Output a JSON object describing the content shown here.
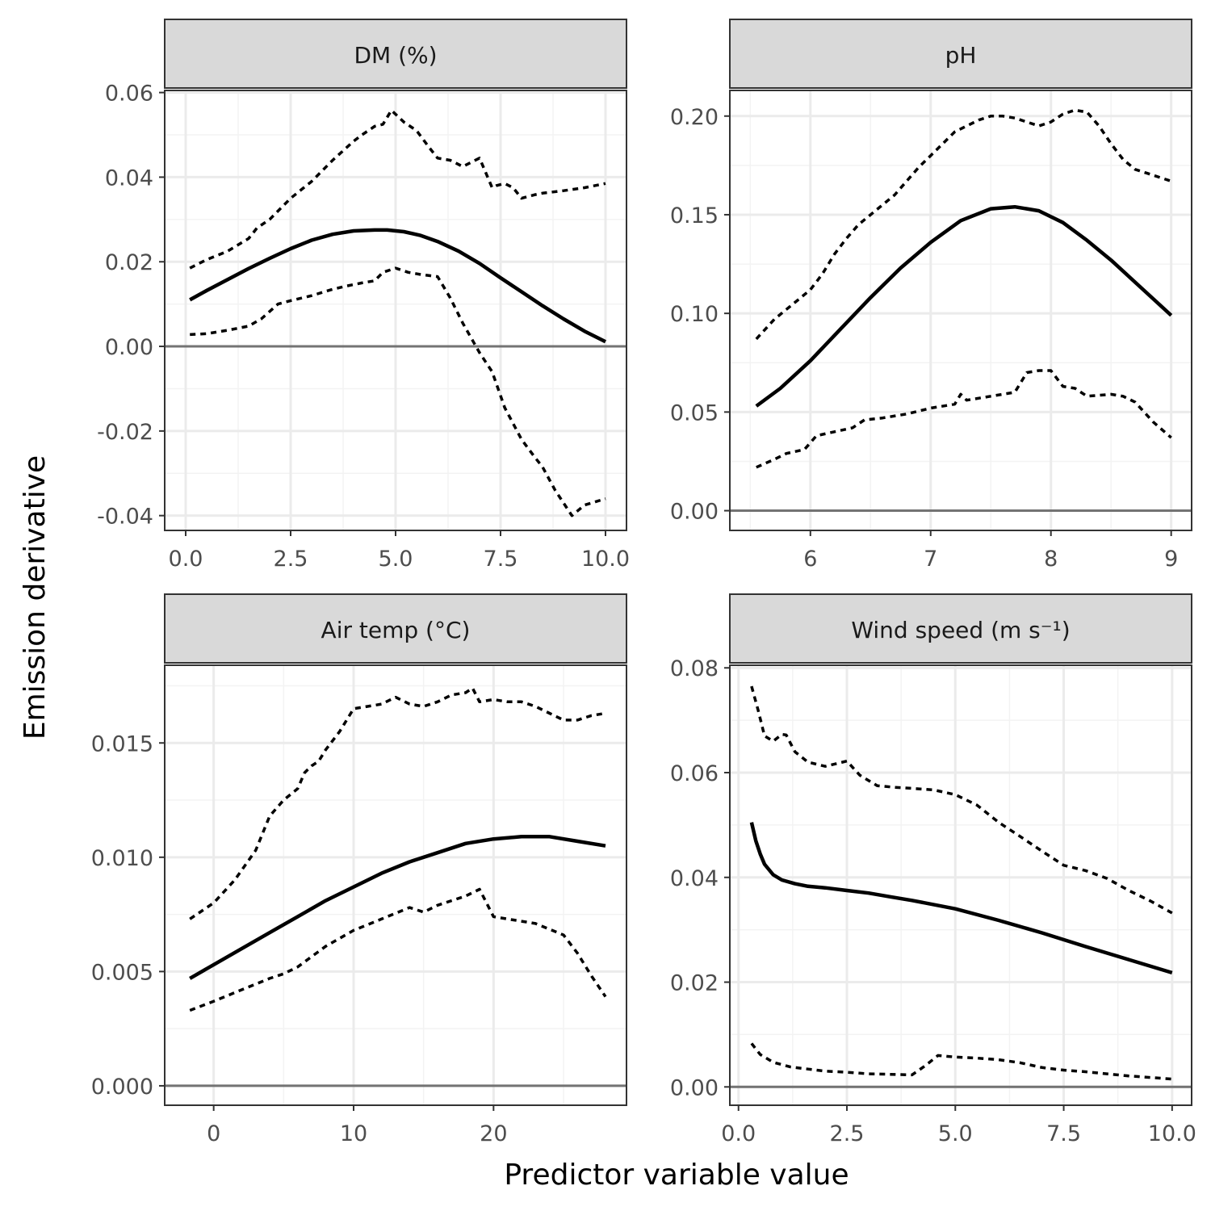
{
  "axes": {
    "xlabel": "Predictor variable value",
    "ylabel": "Emission derivative"
  },
  "colors": {
    "strip_fill": "#d9d9d9",
    "panel_border": "#333333",
    "grid_major": "#ebebeb",
    "grid_minor": "#f3f3f3",
    "zero_line": "#737373",
    "curve": "#000000",
    "tick_text": "#4d4d4d"
  },
  "chart_data": [
    {
      "type": "line",
      "title": "DM (%)",
      "xlim": [
        -0.5,
        10.5
      ],
      "ylim": [
        -0.0435,
        0.0605
      ],
      "xticks": [
        0,
        2.5,
        5,
        7.5,
        10
      ],
      "xtick_labels": [
        "0.0",
        "2.5",
        "5.0",
        "7.5",
        "10.0"
      ],
      "yticks": [
        -0.04,
        -0.02,
        0,
        0.02,
        0.04,
        0.06
      ],
      "ytick_labels": [
        "-0.04",
        "-0.02",
        "0.00",
        "0.02",
        "0.04",
        "0.06"
      ],
      "zero_line": 0,
      "series": [
        {
          "style": "solid",
          "x": [
            0.1,
            0.5,
            1,
            1.5,
            2,
            2.5,
            3,
            3.5,
            4,
            4.5,
            4.8,
            5.2,
            5.6,
            6,
            6.5,
            7,
            7.5,
            8,
            8.5,
            9,
            9.5,
            10
          ],
          "y": [
            0.011,
            0.0132,
            0.0158,
            0.0184,
            0.0208,
            0.0231,
            0.0251,
            0.0265,
            0.0273,
            0.0275,
            0.0275,
            0.0271,
            0.0262,
            0.0248,
            0.0225,
            0.0196,
            0.0162,
            0.0129,
            0.0096,
            0.0065,
            0.0036,
            0.0011
          ]
        },
        {
          "style": "dotted",
          "x": [
            0.1,
            0.5,
            1,
            1.5,
            1.7,
            2,
            2.5,
            3,
            3.5,
            4,
            4.2,
            4.5,
            4.7,
            4.9,
            5.2,
            5.5,
            5.8,
            6,
            6.3,
            6.6,
            7,
            7.3,
            7.4,
            7.6,
            7.8,
            8,
            8.3,
            8.5,
            9,
            9.5,
            10
          ],
          "y": [
            0.0185,
            0.0205,
            0.0225,
            0.0255,
            0.028,
            0.03,
            0.035,
            0.039,
            0.044,
            0.0485,
            0.05,
            0.052,
            0.0525,
            0.0558,
            0.053,
            0.051,
            0.047,
            0.0445,
            0.044,
            0.0425,
            0.0445,
            0.0375,
            0.038,
            0.0385,
            0.0375,
            0.035,
            0.0358,
            0.0362,
            0.0368,
            0.0375,
            0.0385
          ]
        },
        {
          "style": "dotted",
          "x": [
            0.1,
            0.5,
            1,
            1.5,
            1.8,
            2.2,
            2.5,
            3,
            3.5,
            3.8,
            4.2,
            4.5,
            4.7,
            5,
            5.3,
            5.6,
            6,
            6.3,
            6.6,
            7,
            7.3,
            7.6,
            8,
            8.3,
            8.5,
            8.8,
            9.2,
            9.5,
            10
          ],
          "y": [
            0.0028,
            0.003,
            0.0038,
            0.0048,
            0.0065,
            0.01,
            0.0108,
            0.012,
            0.0135,
            0.0142,
            0.015,
            0.0155,
            0.0175,
            0.0185,
            0.0175,
            0.017,
            0.0165,
            0.0115,
            0.0055,
            -0.0015,
            -0.006,
            -0.0145,
            -0.022,
            -0.026,
            -0.0285,
            -0.034,
            -0.04,
            -0.0375,
            -0.036
          ]
        }
      ]
    },
    {
      "type": "line",
      "title": "pH",
      "xlim": [
        5.33,
        9.17
      ],
      "ylim": [
        -0.01,
        0.213
      ],
      "xticks": [
        6,
        7,
        8,
        9
      ],
      "xtick_labels": [
        "6",
        "7",
        "8",
        "9"
      ],
      "yticks": [
        0,
        0.05,
        0.1,
        0.15,
        0.2
      ],
      "ytick_labels": [
        "0.00",
        "0.05",
        "0.10",
        "0.15",
        "0.20"
      ],
      "zero_line": 0,
      "series": [
        {
          "style": "solid",
          "x": [
            5.55,
            5.75,
            6,
            6.25,
            6.5,
            6.75,
            7,
            7.25,
            7.5,
            7.7,
            7.9,
            8.1,
            8.3,
            8.5,
            8.75,
            9
          ],
          "y": [
            0.053,
            0.062,
            0.076,
            0.092,
            0.108,
            0.123,
            0.136,
            0.147,
            0.153,
            0.154,
            0.152,
            0.146,
            0.137,
            0.127,
            0.113,
            0.099
          ]
        },
        {
          "style": "dotted",
          "x": [
            5.55,
            5.7,
            5.8,
            5.9,
            6,
            6.1,
            6.2,
            6.3,
            6.4,
            6.5,
            6.6,
            6.7,
            6.8,
            6.9,
            7,
            7.1,
            7.2,
            7.3,
            7.4,
            7.5,
            7.6,
            7.7,
            7.8,
            7.9,
            8,
            8.1,
            8.2,
            8.3,
            8.4,
            8.5,
            8.6,
            8.7,
            8.8,
            8.9,
            9
          ],
          "y": [
            0.087,
            0.097,
            0.102,
            0.107,
            0.112,
            0.12,
            0.13,
            0.138,
            0.145,
            0.15,
            0.155,
            0.16,
            0.167,
            0.174,
            0.18,
            0.186,
            0.192,
            0.195,
            0.198,
            0.2,
            0.2,
            0.199,
            0.197,
            0.195,
            0.197,
            0.201,
            0.203,
            0.202,
            0.195,
            0.186,
            0.178,
            0.173,
            0.171,
            0.169,
            0.167
          ]
        },
        {
          "style": "dotted",
          "x": [
            5.55,
            5.7,
            5.8,
            5.95,
            6.05,
            6.2,
            6.35,
            6.45,
            6.6,
            6.8,
            7,
            7.2,
            7.25,
            7.3,
            7.5,
            7.7,
            7.8,
            7.9,
            8,
            8.1,
            8.2,
            8.3,
            8.5,
            8.6,
            8.7,
            8.85,
            9
          ],
          "y": [
            0.022,
            0.026,
            0.029,
            0.031,
            0.038,
            0.04,
            0.042,
            0.046,
            0.047,
            0.049,
            0.052,
            0.054,
            0.059,
            0.056,
            0.058,
            0.06,
            0.07,
            0.071,
            0.071,
            0.063,
            0.062,
            0.058,
            0.059,
            0.058,
            0.055,
            0.045,
            0.037
          ]
        }
      ]
    },
    {
      "type": "line",
      "title": "Air temp (°C)",
      "xlim": [
        -3.5,
        29.5
      ],
      "ylim": [
        -0.00085,
        0.0184
      ],
      "xticks": [
        0,
        10,
        20
      ],
      "xtick_labels": [
        "0",
        "10",
        "20"
      ],
      "yticks": [
        0,
        0.005,
        0.01,
        0.015
      ],
      "ytick_labels": [
        "0.000",
        "0.005",
        "0.010",
        "0.015"
      ],
      "zero_line": 0,
      "series": [
        {
          "style": "solid",
          "x": [
            -1.7,
            0,
            2,
            4,
            6,
            8,
            10,
            12,
            14,
            16,
            18,
            20,
            22,
            23,
            24,
            26,
            28
          ],
          "y": [
            0.0047,
            0.0053,
            0.006,
            0.0067,
            0.0074,
            0.0081,
            0.0087,
            0.0093,
            0.0098,
            0.0102,
            0.0106,
            0.0108,
            0.0109,
            0.0109,
            0.0109,
            0.0107,
            0.0105
          ]
        },
        {
          "style": "dotted",
          "x": [
            -1.7,
            0,
            1.5,
            3,
            4,
            5,
            6,
            6.5,
            7,
            7.5,
            8,
            9,
            10,
            11,
            12,
            13,
            14,
            15,
            16,
            17,
            18,
            18.5,
            19,
            20,
            21,
            22,
            23,
            24,
            25,
            26,
            27,
            28
          ],
          "y": [
            0.0073,
            0.008,
            0.009,
            0.0103,
            0.0118,
            0.0125,
            0.013,
            0.0137,
            0.014,
            0.0142,
            0.0147,
            0.0155,
            0.0165,
            0.0166,
            0.0167,
            0.017,
            0.0167,
            0.0166,
            0.0168,
            0.0171,
            0.0172,
            0.0174,
            0.0168,
            0.0169,
            0.0168,
            0.0168,
            0.0166,
            0.0163,
            0.016,
            0.016,
            0.0162,
            0.0163
          ]
        },
        {
          "style": "dotted",
          "x": [
            -1.7,
            0,
            2,
            4,
            5,
            6,
            8,
            10,
            12,
            14,
            15,
            16,
            18,
            19,
            20,
            21,
            22,
            23,
            25,
            26,
            27,
            28
          ],
          "y": [
            0.0033,
            0.0037,
            0.0042,
            0.0047,
            0.0049,
            0.0052,
            0.0061,
            0.0068,
            0.0073,
            0.0078,
            0.0076,
            0.0079,
            0.0083,
            0.0086,
            0.0074,
            0.0073,
            0.0072,
            0.0071,
            0.0066,
            0.0058,
            0.0048,
            0.0039
          ]
        }
      ]
    },
    {
      "type": "line",
      "title": "Wind speed (m s⁻¹)",
      "xlim": [
        -0.2,
        10.45
      ],
      "ylim": [
        -0.0035,
        0.0805
      ],
      "xticks": [
        0,
        2.5,
        5,
        7.5,
        10
      ],
      "xtick_labels": [
        "0.0",
        "2.5",
        "5.0",
        "7.5",
        "10.0"
      ],
      "yticks": [
        0,
        0.02,
        0.04,
        0.06,
        0.08
      ],
      "ytick_labels": [
        "0.00",
        "0.02",
        "0.04",
        "0.06",
        "0.08"
      ],
      "zero_line": 0,
      "series": [
        {
          "style": "solid",
          "x": [
            0.3,
            0.4,
            0.5,
            0.6,
            0.8,
            1,
            1.3,
            1.6,
            2,
            2.5,
            3,
            3.5,
            4,
            5,
            6,
            7,
            8,
            9,
            10
          ],
          "y": [
            0.0505,
            0.047,
            0.0445,
            0.0425,
            0.0405,
            0.0395,
            0.0388,
            0.0383,
            0.038,
            0.0375,
            0.037,
            0.0363,
            0.0356,
            0.034,
            0.0318,
            0.0294,
            0.0268,
            0.0243,
            0.0218
          ]
        },
        {
          "style": "dotted",
          "x": [
            0.3,
            0.45,
            0.6,
            0.8,
            1,
            1.1,
            1.3,
            1.6,
            2,
            2.3,
            2.5,
            2.8,
            3.2,
            3.6,
            4,
            4.5,
            5,
            5.5,
            6,
            6.5,
            7,
            7.5,
            8,
            8.5,
            9,
            9.5,
            10
          ],
          "y": [
            0.0765,
            0.072,
            0.067,
            0.066,
            0.0673,
            0.0672,
            0.064,
            0.062,
            0.0612,
            0.0618,
            0.0622,
            0.0595,
            0.0575,
            0.0572,
            0.057,
            0.0567,
            0.0558,
            0.0538,
            0.0505,
            0.0478,
            0.045,
            0.0423,
            0.0413,
            0.0398,
            0.0375,
            0.0355,
            0.0332
          ]
        },
        {
          "style": "dotted",
          "x": [
            0.3,
            0.5,
            0.8,
            1.2,
            1.6,
            2,
            2.5,
            3,
            3.5,
            4,
            4.3,
            4.6,
            5,
            5.5,
            6,
            6.5,
            7,
            7.5,
            8,
            8.5,
            9,
            9.5,
            10
          ],
          "y": [
            0.0083,
            0.0062,
            0.0047,
            0.0038,
            0.0034,
            0.003,
            0.0028,
            0.0025,
            0.0024,
            0.0023,
            0.004,
            0.006,
            0.0057,
            0.0055,
            0.0052,
            0.0046,
            0.0037,
            0.0032,
            0.0029,
            0.0025,
            0.0021,
            0.0018,
            0.0015
          ]
        }
      ]
    }
  ]
}
